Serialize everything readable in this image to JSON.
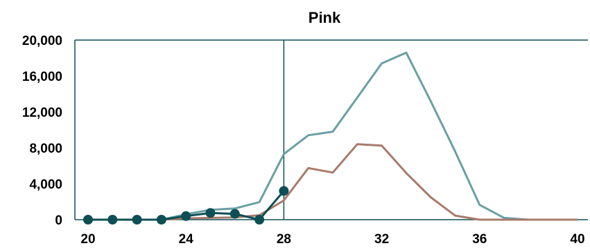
{
  "chart_data": {
    "type": "line",
    "title": "Pink",
    "xlabel": "",
    "ylabel": "",
    "xlim": [
      20,
      40
    ],
    "ylim": [
      0,
      20000
    ],
    "x_ticks": [
      20,
      24,
      28,
      32,
      36,
      40
    ],
    "y_ticks": [
      0,
      4000,
      8000,
      12000,
      16000,
      20000
    ],
    "x_tick_labels": [
      "20",
      "24",
      "28",
      "32",
      "36",
      "40"
    ],
    "y_tick_labels": [
      "0",
      "4,000",
      "8,000",
      "12,000",
      "16,000",
      "20,000"
    ],
    "vertical_marker_x": 28,
    "grid": false,
    "legend": "none",
    "series": [
      {
        "color": "#6a9fa3",
        "x": [
          20,
          21,
          22,
          23,
          24,
          25,
          26,
          27,
          28,
          29,
          30,
          31,
          32,
          33,
          34,
          35,
          36,
          37,
          38,
          39,
          40
        ],
        "y": [
          0,
          0,
          0,
          0,
          600,
          1100,
          1250,
          1950,
          7300,
          9400,
          9800,
          13600,
          17400,
          18600,
          13200,
          7600,
          1650,
          200,
          0,
          0,
          0
        ]
      },
      {
        "color": "#a87a6c",
        "x": [
          20,
          21,
          22,
          23,
          24,
          25,
          26,
          27,
          28,
          29,
          30,
          31,
          32,
          33,
          34,
          35,
          36,
          37,
          38,
          39,
          40
        ],
        "y": [
          0,
          0,
          0,
          0,
          150,
          200,
          250,
          500,
          2150,
          5750,
          5250,
          8400,
          8250,
          5200,
          2500,
          450,
          0,
          0,
          0,
          0,
          0
        ]
      },
      {
        "color": "#0d4f55",
        "markers": true,
        "x": [
          20,
          21,
          22,
          23,
          24,
          25,
          26,
          27,
          28
        ],
        "y": [
          0,
          0,
          0,
          0,
          400,
          750,
          650,
          0,
          3200
        ]
      }
    ]
  }
}
